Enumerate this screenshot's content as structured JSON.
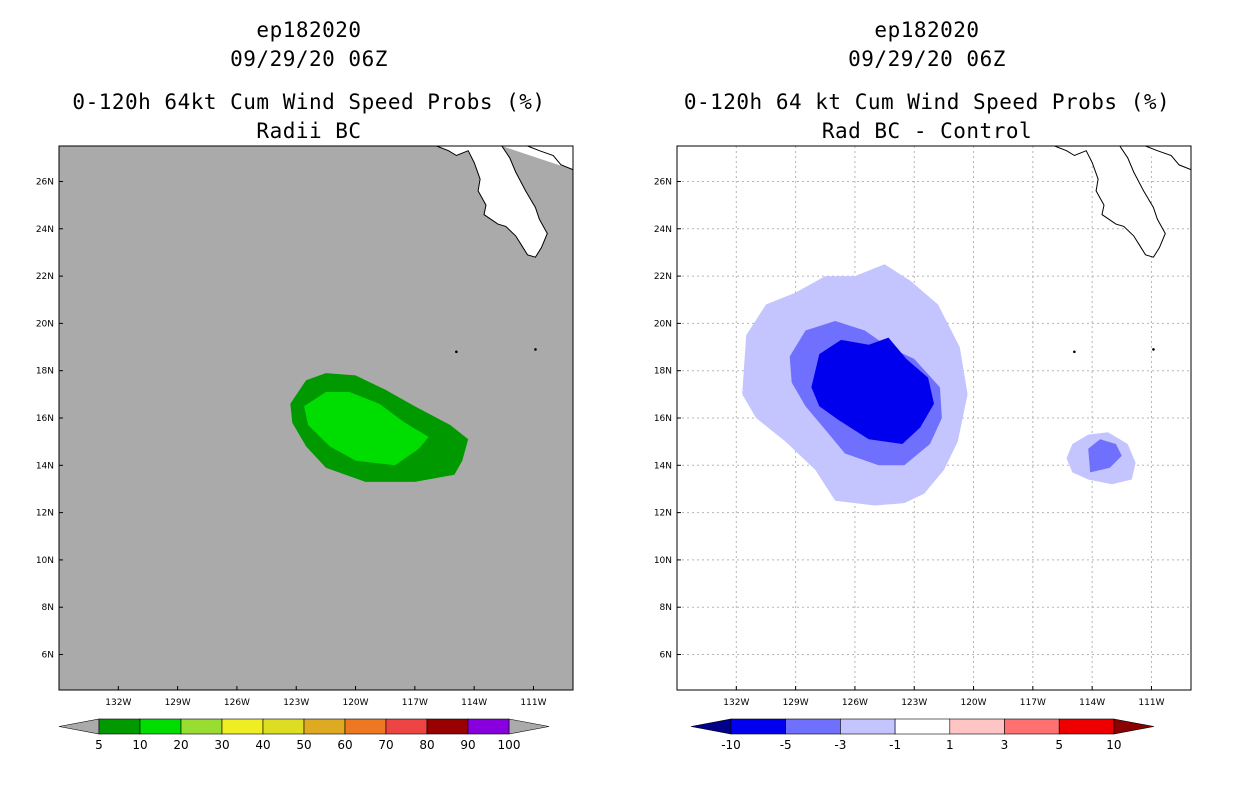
{
  "chart_data": [
    {
      "type": "filled_contour",
      "title_lines": [
        "ep182020",
        "09/29/20 06Z",
        "0-120h 64kt Cum Wind Speed Probs (%)",
        "Radii BC"
      ],
      "xlabel": "",
      "ylabel": "",
      "xlim": [
        -135,
        -109
      ],
      "ylim": [
        4.5,
        27.5
      ],
      "x_ticks": [
        "132W",
        "129W",
        "126W",
        "123W",
        "120W",
        "117W",
        "114W",
        "111W"
      ],
      "x_tick_values": [
        -132,
        -129,
        -126,
        -123,
        -120,
        -117,
        -114,
        -111
      ],
      "y_ticks": [
        "6N",
        "8N",
        "10N",
        "12N",
        "14N",
        "16N",
        "18N",
        "20N",
        "22N",
        "24N",
        "26N"
      ],
      "y_tick_values": [
        6,
        8,
        10,
        12,
        14,
        16,
        18,
        20,
        22,
        24,
        26
      ],
      "background": "#aaaaaa",
      "grid": false,
      "contours": [
        {
          "level": "5-10",
          "color": "#009900",
          "points": [
            [
              -123.3,
              16.6
            ],
            [
              -122.5,
              17.6
            ],
            [
              -121.5,
              17.9
            ],
            [
              -120,
              17.8
            ],
            [
              -118.5,
              17.2
            ],
            [
              -117,
              16.5
            ],
            [
              -115.2,
              15.7
            ],
            [
              -114.3,
              15.1
            ],
            [
              -114.6,
              14.2
            ],
            [
              -115,
              13.6
            ],
            [
              -117,
              13.3
            ],
            [
              -119.5,
              13.3
            ],
            [
              -121.5,
              13.9
            ],
            [
              -122.5,
              14.8
            ],
            [
              -123.2,
              15.8
            ]
          ]
        },
        {
          "level": "10-20",
          "color": "#00dd00",
          "points": [
            [
              -122.6,
              16.5
            ],
            [
              -121.5,
              17.1
            ],
            [
              -120.3,
              17.1
            ],
            [
              -118.8,
              16.6
            ],
            [
              -117.5,
              15.8
            ],
            [
              -116.3,
              15.2
            ],
            [
              -116.8,
              14.7
            ],
            [
              -118,
              14.0
            ],
            [
              -120,
              14.2
            ],
            [
              -121.3,
              14.8
            ],
            [
              -122.4,
              15.7
            ]
          ]
        }
      ],
      "colorbar": {
        "labels": [
          "5",
          "10",
          "20",
          "30",
          "40",
          "50",
          "60",
          "70",
          "80",
          "90",
          "100"
        ],
        "colors": [
          "#009900",
          "#00dd00",
          "#99dd33",
          "#eeee22",
          "#dddd22",
          "#ddaa22",
          "#ee7722",
          "#ee4444",
          "#990000",
          "#8800dd"
        ],
        "arrow_color": "#aaaaaa"
      }
    },
    {
      "type": "filled_contour",
      "title_lines": [
        "ep182020",
        "09/29/20 06Z",
        "0-120h 64 kt Cum Wind Speed Probs (%)",
        "Rad BC - Control"
      ],
      "xlabel": "",
      "ylabel": "",
      "xlim": [
        -135,
        -109
      ],
      "ylim": [
        4.5,
        27.5
      ],
      "x_ticks": [
        "132W",
        "129W",
        "126W",
        "123W",
        "120W",
        "117W",
        "114W",
        "111W"
      ],
      "x_tick_values": [
        -132,
        -129,
        -126,
        -123,
        -120,
        -117,
        -114,
        -111
      ],
      "y_ticks": [
        "6N",
        "8N",
        "10N",
        "12N",
        "14N",
        "16N",
        "18N",
        "20N",
        "22N",
        "24N",
        "26N"
      ],
      "y_tick_values": [
        6,
        8,
        10,
        12,
        14,
        16,
        18,
        20,
        22,
        24,
        26
      ],
      "background": "#ffffff",
      "grid": true,
      "contours": [
        {
          "level": "-3 to -1",
          "color": "#c4c4ff",
          "points": [
            [
              -131.7,
              17.0
            ],
            [
              -131.5,
              19.5
            ],
            [
              -130.5,
              20.8
            ],
            [
              -129,
              21.3
            ],
            [
              -127.5,
              22.0
            ],
            [
              -126,
              22.0
            ],
            [
              -124.5,
              22.5
            ],
            [
              -123.2,
              21.8
            ],
            [
              -121.8,
              20.8
            ],
            [
              -120.7,
              19.0
            ],
            [
              -120.3,
              17.0
            ],
            [
              -120.8,
              15.0
            ],
            [
              -121.5,
              13.8
            ],
            [
              -122.5,
              12.8
            ],
            [
              -123.5,
              12.4
            ],
            [
              -125,
              12.3
            ],
            [
              -127,
              12.5
            ],
            [
              -128,
              13.8
            ],
            [
              -129.5,
              15.0
            ],
            [
              -131,
              16.0
            ]
          ]
        },
        {
          "level": "-3 to -1",
          "color": "#c4c4ff",
          "points": [
            [
              -115.3,
              14.3
            ],
            [
              -115,
              14.9
            ],
            [
              -114.2,
              15.3
            ],
            [
              -113.2,
              15.4
            ],
            [
              -112.2,
              14.9
            ],
            [
              -111.8,
              14.1
            ],
            [
              -112,
              13.4
            ],
            [
              -113,
              13.2
            ],
            [
              -114.2,
              13.4
            ],
            [
              -115,
              13.7
            ]
          ]
        },
        {
          "level": "-5 to -3",
          "color": "#7070ff",
          "points": [
            [
              -129.3,
              18.6
            ],
            [
              -128.5,
              19.7
            ],
            [
              -127,
              20.1
            ],
            [
              -125.5,
              19.7
            ],
            [
              -124.3,
              19.0
            ],
            [
              -123,
              18.5
            ],
            [
              -121.7,
              17.3
            ],
            [
              -121.6,
              16.0
            ],
            [
              -122.2,
              14.9
            ],
            [
              -123.5,
              14.0
            ],
            [
              -124.8,
              14.0
            ],
            [
              -126.5,
              14.5
            ],
            [
              -127.5,
              15.5
            ],
            [
              -128.5,
              16.5
            ],
            [
              -129.2,
              17.5
            ]
          ]
        },
        {
          "level": "-5 to -3",
          "color": "#7070ff",
          "points": [
            [
              -114.2,
              14.7
            ],
            [
              -113.6,
              15.1
            ],
            [
              -112.8,
              14.9
            ],
            [
              -112.5,
              14.4
            ],
            [
              -113.1,
              13.9
            ],
            [
              -114.1,
              13.7
            ]
          ]
        },
        {
          "level": "-10 to -5",
          "color": "#0000ee",
          "points": [
            [
              -128.2,
              17.3
            ],
            [
              -127.8,
              18.7
            ],
            [
              -126.7,
              19.3
            ],
            [
              -125.3,
              19.1
            ],
            [
              -124.3,
              19.4
            ],
            [
              -123.4,
              18.5
            ],
            [
              -122.3,
              17.7
            ],
            [
              -122,
              16.6
            ],
            [
              -122.7,
              15.6
            ],
            [
              -123.6,
              14.9
            ],
            [
              -125.3,
              15.1
            ],
            [
              -126.8,
              15.9
            ],
            [
              -127.8,
              16.5
            ]
          ]
        }
      ],
      "colorbar": {
        "labels": [
          "-10",
          "-5",
          "-3",
          "-1",
          "1",
          "3",
          "5",
          "10"
        ],
        "colors": [
          "#0000ee",
          "#7070ff",
          "#c4c4ff",
          "#ffffff",
          "#ffc4c4",
          "#ff7070",
          "#ee0000"
        ],
        "arrow_left_color": "#00008b",
        "arrow_right_color": "#8b0000"
      }
    }
  ],
  "coastline": {
    "color": "#000000",
    "land_color": "#ffffff",
    "baja": [
      [
        -115.9,
        27.5
      ],
      [
        -115.3,
        27.3
      ],
      [
        -114.9,
        27.1
      ],
      [
        -114.3,
        27.3
      ],
      [
        -114,
        26.8
      ],
      [
        -113.7,
        26.1
      ],
      [
        -113.8,
        25.6
      ],
      [
        -113.4,
        25.0
      ],
      [
        -113.5,
        24.6
      ],
      [
        -112.8,
        24.2
      ],
      [
        -112.4,
        24.1
      ],
      [
        -111.9,
        23.7
      ],
      [
        -111.6,
        23.3
      ],
      [
        -111.3,
        22.9
      ],
      [
        -110.9,
        22.8
      ],
      [
        -110.6,
        23.2
      ],
      [
        -110.3,
        23.8
      ],
      [
        -110.7,
        24.4
      ],
      [
        -110.9,
        24.9
      ],
      [
        -111.4,
        25.6
      ],
      [
        -111.9,
        26.4
      ],
      [
        -112.2,
        27.0
      ],
      [
        -112.6,
        27.5
      ]
    ],
    "mainland": [
      [
        -111.3,
        27.5
      ],
      [
        -110.7,
        27.3
      ],
      [
        -110,
        27.1
      ],
      [
        -109.6,
        26.7
      ],
      [
        -109,
        26.5
      ]
    ],
    "islands": [
      [
        -114.9,
        18.8
      ],
      [
        -110.9,
        18.9
      ]
    ]
  }
}
